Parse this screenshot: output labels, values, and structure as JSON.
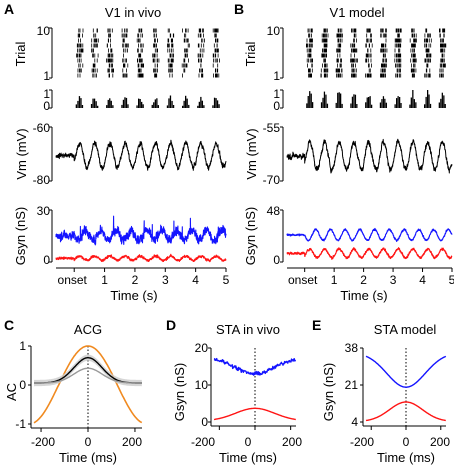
{
  "chart_data": [
    {
      "panel": "A",
      "title": "V1 in vivo",
      "type": "line",
      "xlabel": "Time (s)",
      "xticks": [
        "onset",
        "1",
        "2",
        "3",
        "4",
        "5"
      ],
      "xlim": [
        -0.6,
        5
      ],
      "raster": {
        "ylabel": "Trial",
        "yticks": [
          "10",
          "1"
        ],
        "trials": 10,
        "ylim": [
          1,
          10
        ]
      },
      "psth": {
        "yticks": [
          "1",
          "0"
        ],
        "ylim": [
          0,
          1
        ],
        "cycle_hz": 2
      },
      "vm": {
        "ylabel": "Vm (mV)",
        "yticks": [
          "-60",
          "-80"
        ],
        "ylim": [
          -80,
          -60
        ],
        "mean": -70.5,
        "amp": 4.5,
        "cycle_hz": 2
      },
      "gsyn": {
        "ylabel": "Gsyn (nS)",
        "yticks": [
          "30",
          "0"
        ],
        "ylim": [
          0,
          30
        ],
        "series": [
          {
            "color": "#1414ff",
            "mean": 15.5,
            "amp": 3
          },
          {
            "color": "#ff1414",
            "mean": 2.2,
            "amp": 1.2
          }
        ]
      }
    },
    {
      "panel": "B",
      "title": "V1 model",
      "type": "line",
      "xlabel": "Time (s)",
      "xticks": [
        "onset",
        "1",
        "2",
        "3",
        "4",
        "5"
      ],
      "xlim": [
        -0.6,
        5
      ],
      "raster": {
        "ylabel": "Trial",
        "yticks": [
          "10",
          "1"
        ],
        "trials": 10,
        "ylim": [
          1,
          10
        ]
      },
      "psth": {
        "yticks": [
          "1",
          "0"
        ],
        "ylim": [
          0,
          1
        ],
        "cycle_hz": 2
      },
      "vm": {
        "ylabel": "Vm (mV)",
        "yticks": [
          "-55",
          "-70"
        ],
        "ylim": [
          -70,
          -55
        ],
        "mean": -63,
        "amp": 3.8,
        "cycle_hz": 2
      },
      "gsyn": {
        "ylabel": "Gsyn (nS)",
        "yticks": [
          "48",
          "0"
        ],
        "ylim": [
          0,
          48
        ],
        "series": [
          {
            "color": "#1414ff",
            "mean": 25,
            "amp": 5
          },
          {
            "color": "#ff1414",
            "mean": 8,
            "amp": 4
          }
        ]
      }
    },
    {
      "panel": "C",
      "title": "ACG",
      "type": "line",
      "xlabel": "Time (ms)",
      "ylabel": "AC",
      "xlim": [
        -230,
        230
      ],
      "ylim": [
        -1,
        1
      ],
      "xticks": [
        "-200",
        "0",
        "200"
      ],
      "yticks": [
        "1",
        "0",
        "-1"
      ],
      "series": [
        {
          "color": "#f08a20",
          "kind": "cos",
          "amp": 1.0,
          "half_period": 250,
          "base": 0
        },
        {
          "color": "#000000",
          "kind": "bump",
          "amp": 0.65,
          "sigma": 60,
          "base": 0.05,
          "error": true
        },
        {
          "color": "#999999",
          "kind": "bump",
          "amp": 0.38,
          "sigma": 60,
          "base": 0.05
        }
      ]
    },
    {
      "panel": "D",
      "title": "STA in vivo",
      "type": "line",
      "xlabel": "Time (ms)",
      "ylabel": "Gsyn (nS)",
      "xlim": [
        -230,
        230
      ],
      "ylim": [
        0,
        20
      ],
      "xticks": [
        "-200",
        "0",
        "200"
      ],
      "yticks": [
        "20",
        "10",
        "0"
      ],
      "series": [
        {
          "color": "#1414ff",
          "kind": "dip",
          "base": 17.5,
          "depth": 4.5,
          "sigma": 110,
          "noise": 0.5
        },
        {
          "color": "#ff1414",
          "kind": "bump",
          "base": 0.3,
          "amp": 3.4,
          "sigma": 110
        }
      ]
    },
    {
      "panel": "E",
      "title": "STA model",
      "type": "line",
      "xlabel": "Time (ms)",
      "ylabel": "Gsyn (nS)",
      "xlim": [
        -230,
        230
      ],
      "ylim": [
        4,
        38
      ],
      "xticks": [
        "-200",
        "0",
        "200"
      ],
      "yticks": [
        "38",
        "21",
        "4"
      ],
      "series": [
        {
          "color": "#1414ff",
          "kind": "dip",
          "base": 36,
          "depth": 16,
          "sigma": 110,
          "noise": 0
        },
        {
          "color": "#ff1414",
          "kind": "bump",
          "base": 4.2,
          "amp": 9,
          "sigma": 95
        }
      ]
    }
  ]
}
